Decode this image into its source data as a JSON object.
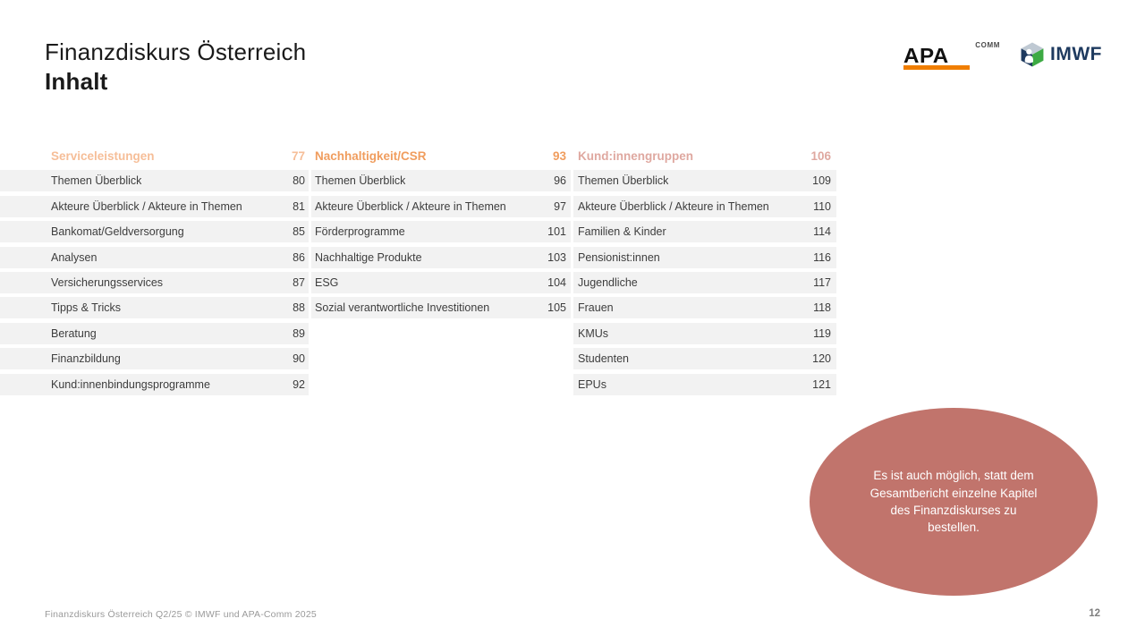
{
  "header": {
    "title": "Finanzdiskurs Österreich",
    "subtitle": "Inhalt"
  },
  "logos": {
    "apa": {
      "word": "APA",
      "sup": "COMM",
      "bar_color": "#F07E00"
    },
    "imwf": {
      "word": "IMWF",
      "navy": "#1E3A5F",
      "green": "#3DAA43",
      "top_face": "#BFC9D3"
    }
  },
  "toc": {
    "columns": [
      {
        "header": {
          "label": "Serviceleistungen",
          "page": "77",
          "color": "#F6BE98"
        },
        "items": [
          {
            "label": "Themen Überblick",
            "page": "80"
          },
          {
            "label": "Akteure Überblick / Akteure in Themen",
            "page": "81"
          },
          {
            "label": "Bankomat/Geldversorgung",
            "page": "85"
          },
          {
            "label": "Analysen",
            "page": "86"
          },
          {
            "label": "Versicherungsservices",
            "page": "87"
          },
          {
            "label": "Tipps & Tricks",
            "page": "88"
          },
          {
            "label": "Beratung",
            "page": "89"
          },
          {
            "label": "Finanzbildung",
            "page": "90"
          },
          {
            "label": "Kund:innenbindungsprogramme",
            "page": "92"
          }
        ]
      },
      {
        "header": {
          "label": "Nachhaltigkeit/CSR",
          "page": "93",
          "color": "#F09D5E"
        },
        "items": [
          {
            "label": "Themen Überblick",
            "page": "96"
          },
          {
            "label": "Akteure Überblick / Akteure in Themen",
            "page": "97"
          },
          {
            "label": "Förderprogramme",
            "page": "101"
          },
          {
            "label": "Nachhaltige Produkte",
            "page": "103"
          },
          {
            "label": "ESG",
            "page": "104"
          },
          {
            "label": "Sozial verantwortliche Investitionen",
            "page": "105"
          }
        ]
      },
      {
        "header": {
          "label": "Kund:innengruppen",
          "page": "106",
          "color": "#DFA8A0"
        },
        "items": [
          {
            "label": "Themen Überblick",
            "page": "109"
          },
          {
            "label": "Akteure Überblick / Akteure in Themen",
            "page": "110"
          },
          {
            "label": "Familien & Kinder",
            "page": "114"
          },
          {
            "label": "Pensionist:innen",
            "page": "116"
          },
          {
            "label": "Jugendliche",
            "page": "117"
          },
          {
            "label": "Frauen",
            "page": "118"
          },
          {
            "label": "KMUs",
            "page": "119"
          },
          {
            "label": "Studenten",
            "page": "120"
          },
          {
            "label": "EPUs",
            "page": "121"
          }
        ]
      }
    ]
  },
  "callout": {
    "text": "Es ist auch möglich, statt dem Gesamtbericht einzelne Kapitel des Finanzdiskurses zu bestellen.",
    "fill": "#C1746C"
  },
  "footer": {
    "left": "Finanzdiskurs Österreich Q2/25 © IMWF und APA-Comm 2025",
    "page_number": "12"
  },
  "colors": {
    "row_bg": "#F2F2F2"
  }
}
